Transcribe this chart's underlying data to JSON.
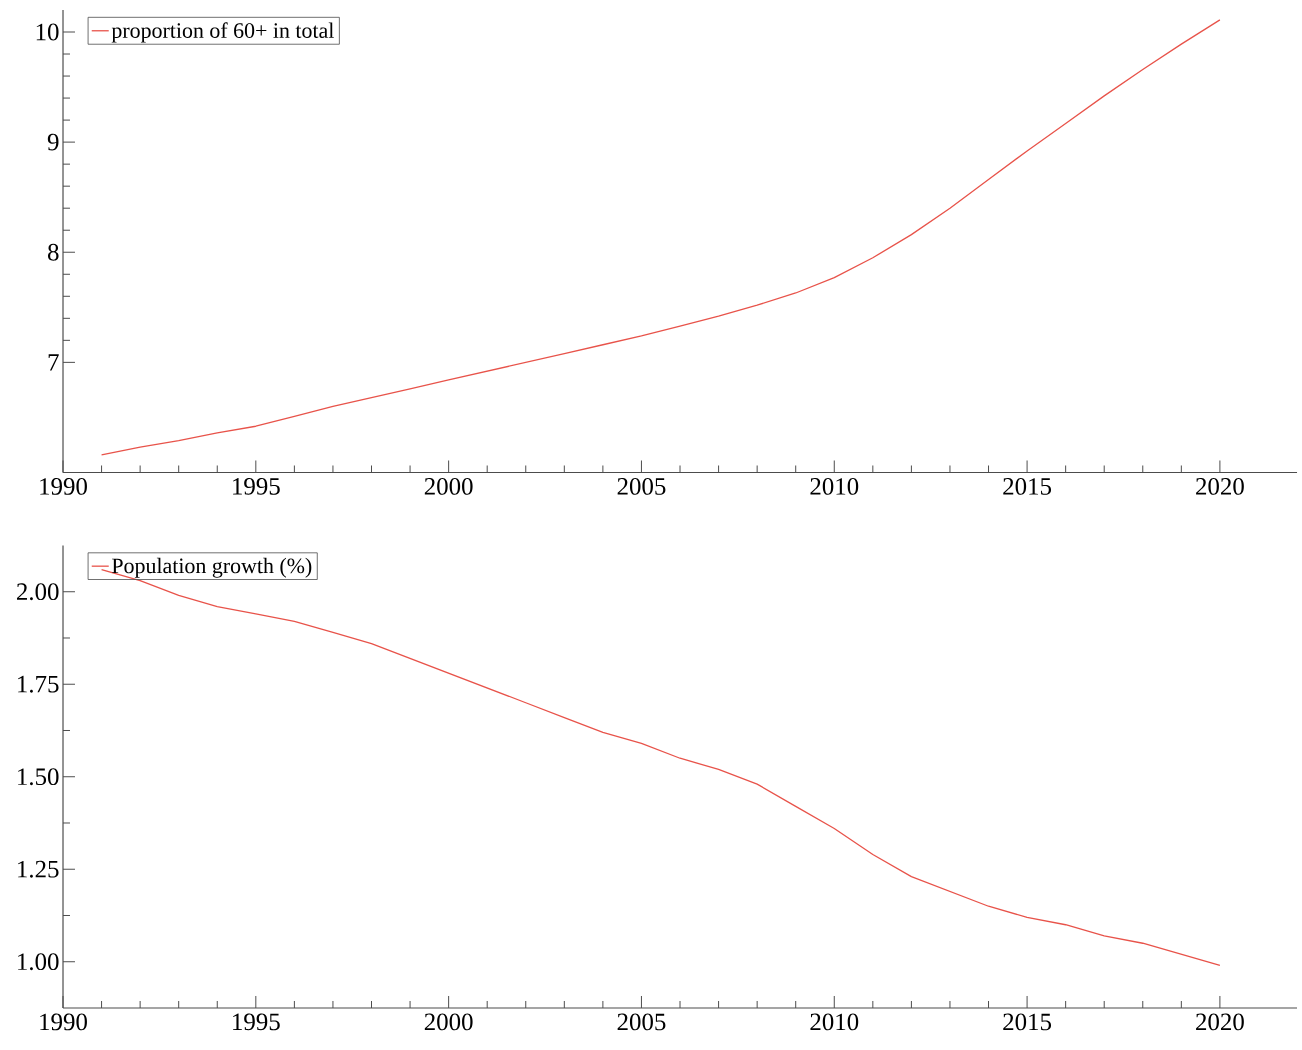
{
  "chart_data": [
    {
      "type": "line",
      "x": [
        1991,
        1992,
        1993,
        1994,
        1995,
        1996,
        1997,
        1998,
        1999,
        2000,
        2001,
        2002,
        2003,
        2004,
        2005,
        2006,
        2007,
        2008,
        2009,
        2010,
        2011,
        2012,
        2013,
        2014,
        2015,
        2016,
        2017,
        2018,
        2019,
        2020
      ],
      "series": [
        {
          "name": "proportion of 60+ in total",
          "color": "#e8534a",
          "values": [
            6.16,
            6.23,
            6.29,
            6.36,
            6.42,
            6.51,
            6.6,
            6.68,
            6.76,
            6.84,
            6.92,
            7.0,
            7.08,
            7.16,
            7.24,
            7.33,
            7.42,
            7.52,
            7.63,
            7.77,
            7.95,
            8.16,
            8.4,
            8.66,
            8.92,
            9.17,
            9.42,
            9.66,
            9.89,
            10.11
          ]
        }
      ],
      "xlim": [
        1990,
        2022
      ],
      "xticks": [
        1990,
        1995,
        2000,
        2005,
        2010,
        2015,
        2020
      ],
      "ylim": [
        6.0,
        10.2
      ],
      "yticks": [
        7,
        8,
        9,
        10
      ],
      "legend": "top left"
    },
    {
      "type": "line",
      "x": [
        1991,
        1992,
        1993,
        1994,
        1995,
        1996,
        1997,
        1998,
        1999,
        2000,
        2001,
        2002,
        2003,
        2004,
        2005,
        2006,
        2007,
        2008,
        2009,
        2010,
        2011,
        2012,
        2013,
        2014,
        2015,
        2016,
        2017,
        2018,
        2019,
        2020
      ],
      "series": [
        {
          "name": "Population growth (%)",
          "color": "#e8534a",
          "values": [
            2.06,
            2.03,
            1.99,
            1.96,
            1.94,
            1.92,
            1.89,
            1.86,
            1.82,
            1.78,
            1.74,
            1.7,
            1.66,
            1.62,
            1.59,
            1.55,
            1.52,
            1.48,
            1.42,
            1.36,
            1.29,
            1.23,
            1.19,
            1.15,
            1.12,
            1.1,
            1.07,
            1.05,
            1.02,
            0.99
          ]
        }
      ],
      "xlim": [
        1990,
        2022
      ],
      "xticks": [
        1990,
        1995,
        2000,
        2005,
        2010,
        2015,
        2020
      ],
      "ylim": [
        0.875,
        2.125
      ],
      "yticks": [
        {
          "value": 1,
          "label": "1.00"
        },
        {
          "value": 1.25,
          "label": "1.25"
        },
        {
          "value": 1.5,
          "label": "1.50"
        },
        {
          "value": 1.75,
          "label": "1.75"
        },
        {
          "value": 2,
          "label": "2.00"
        }
      ],
      "legend": "top left"
    }
  ]
}
